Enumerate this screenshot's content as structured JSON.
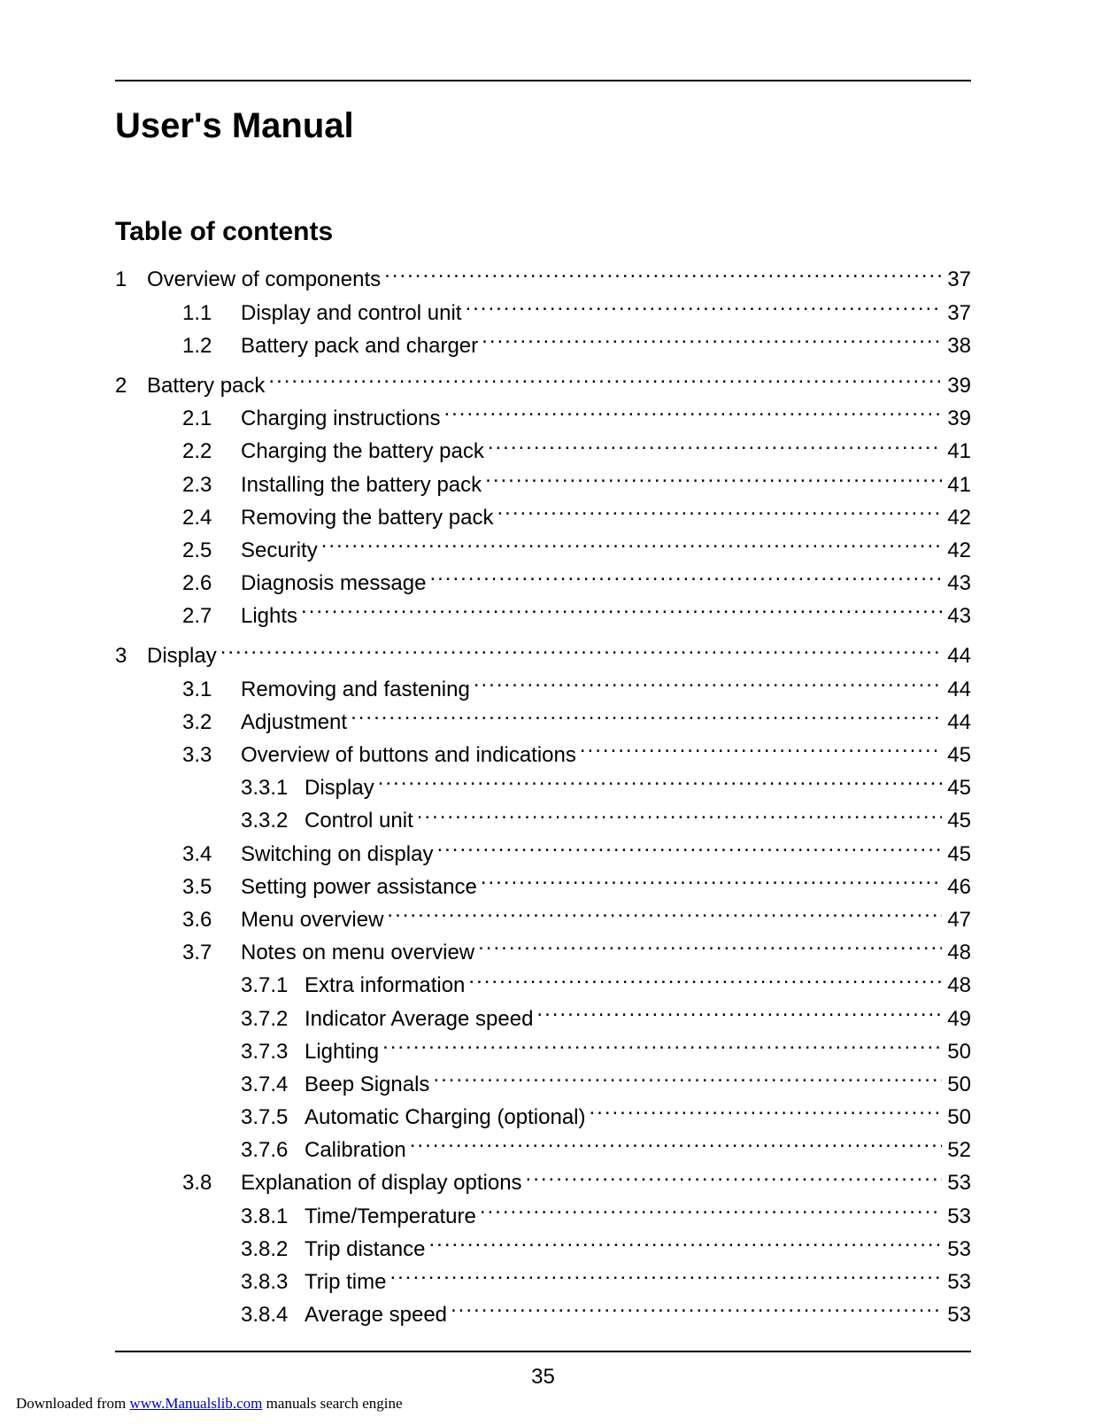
{
  "doc_title": "User's Manual",
  "toc_title": "Table of contents",
  "page_number": "35",
  "footer_prefix": "Downloaded from ",
  "footer_link": "www.Manualslib.com",
  "footer_suffix": " manuals search engine",
  "entries": [
    {
      "level": 1,
      "num": "1",
      "label": "Overview of components ",
      "page": "37"
    },
    {
      "level": 2,
      "num": "1.1",
      "label": "Display and control unit",
      "page": "37"
    },
    {
      "level": 2,
      "num": "1.2",
      "label": "Battery pack and charger",
      "page": "38"
    },
    {
      "gap": true
    },
    {
      "level": 1,
      "num": "2",
      "label": "Battery pack ",
      "page": "39"
    },
    {
      "level": 2,
      "num": "2.1",
      "label": "Charging instructions ",
      "page": "39"
    },
    {
      "level": 2,
      "num": "2.2",
      "label": "Charging the battery pack",
      "page": "41"
    },
    {
      "level": 2,
      "num": "2.3",
      "label": "Installing the battery pack ",
      "page": "41"
    },
    {
      "level": 2,
      "num": "2.4",
      "label": "Removing the battery pack ",
      "page": "42"
    },
    {
      "level": 2,
      "num": "2.5",
      "label": "Security ",
      "page": "42"
    },
    {
      "level": 2,
      "num": "2.6",
      "label": "Diagnosis message",
      "page": "43"
    },
    {
      "level": 2,
      "num": "2.7",
      "label": "Lights",
      "page": "43"
    },
    {
      "gap": true
    },
    {
      "level": 1,
      "num": "3",
      "label": "Display",
      "page": "44"
    },
    {
      "level": 2,
      "num": "3.1",
      "label": "Removing and fastening",
      "page": "44"
    },
    {
      "level": 2,
      "num": "3.2",
      "label": "Adjustment ",
      "page": "44"
    },
    {
      "level": 2,
      "num": "3.3",
      "label": "Overview of buttons and indications ",
      "page": "45"
    },
    {
      "level": 3,
      "num": "3.3.1",
      "label": "Display ",
      "page": "45"
    },
    {
      "level": 3,
      "num": "3.3.2",
      "label": "Control unit ",
      "page": "45"
    },
    {
      "level": 2,
      "num": "3.4",
      "label": "Switching on display",
      "page": "45"
    },
    {
      "level": 2,
      "num": "3.5",
      "label": "Setting power assistance ",
      "page": "46"
    },
    {
      "level": 2,
      "num": "3.6",
      "label": "Menu overview ",
      "page": "47"
    },
    {
      "level": 2,
      "num": "3.7",
      "label": "Notes on menu overview",
      "page": "48"
    },
    {
      "level": 3,
      "num": "3.7.1",
      "label": "Extra information ",
      "page": "48"
    },
    {
      "level": 3,
      "num": "3.7.2",
      "label": "Indicator Average speed",
      "page": "49"
    },
    {
      "level": 3,
      "num": "3.7.3",
      "label": "Lighting ",
      "page": "50"
    },
    {
      "level": 3,
      "num": "3.7.4",
      "label": "Beep Signals",
      "page": "50"
    },
    {
      "level": 3,
      "num": "3.7.5",
      "label": "Automatic Charging (optional) ",
      "page": "50"
    },
    {
      "level": 3,
      "num": "3.7.6",
      "label": "Calibration",
      "page": "52"
    },
    {
      "level": 2,
      "num": "3.8",
      "label": "Explanation of display options",
      "page": "53"
    },
    {
      "level": 3,
      "num": "3.8.1",
      "label": "Time/Temperature ",
      "page": "53"
    },
    {
      "level": 3,
      "num": "3.8.2",
      "label": "Trip distance ",
      "page": "53"
    },
    {
      "level": 3,
      "num": "3.8.3",
      "label": "Trip time ",
      "page": "53"
    },
    {
      "level": 3,
      "num": "3.8.4",
      "label": "Average speed",
      "page": "53"
    }
  ]
}
